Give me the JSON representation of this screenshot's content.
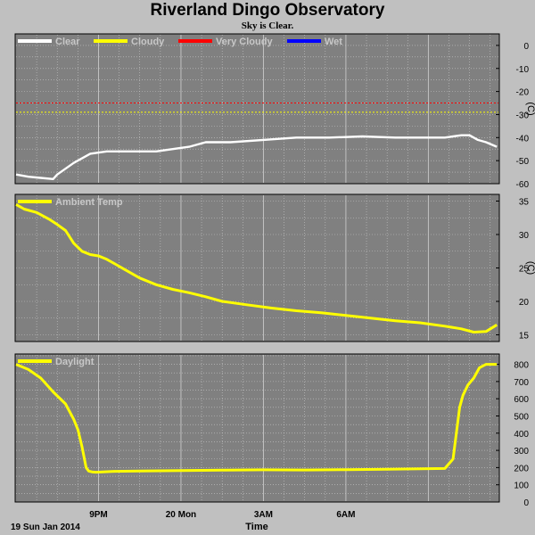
{
  "header": {
    "title": "Riverland Dingo Observatory",
    "subtitle": "Sky is Clear."
  },
  "footer": {
    "date_label": "19 Sun Jan 2014",
    "time_label": "Time"
  },
  "colors": {
    "plot_bg": "#808080",
    "frame_bg": "#c0c0c0",
    "grid": "#c8c8c8",
    "clear": "#ffffff",
    "cloudy": "#ffff00",
    "very_cloudy": "#ff0000",
    "wet": "#0000ff",
    "legend_text": "#c8c8c8"
  },
  "chart_data": [
    {
      "type": "line",
      "legend": [
        "Clear",
        "Cloudy",
        "Very Cloudy",
        "Wet"
      ],
      "ylabel": "(C)",
      "ylim": [
        -60,
        5
      ],
      "yticks": [
        0,
        -10,
        -20,
        -30,
        -40,
        -50,
        -60
      ],
      "xlim": [
        0,
        5.85
      ],
      "threshold_lines": [
        {
          "name": "Very Cloudy",
          "y": -25,
          "color": "#ff0000"
        },
        {
          "name": "Cloudy",
          "y": -29,
          "color": "#ffff00"
        }
      ],
      "series": [
        {
          "name": "Clear",
          "color": "#ffffff",
          "x": [
            0,
            0.15,
            0.3,
            0.45,
            0.5,
            0.7,
            0.9,
            1.1,
            1.3,
            1.5,
            1.7,
            1.9,
            2.1,
            2.3,
            2.6,
            3.0,
            3.4,
            3.8,
            4.2,
            4.6,
            5.0,
            5.2,
            5.4,
            5.5,
            5.6,
            5.7,
            5.83
          ],
          "values": [
            -56,
            -57,
            -57.5,
            -58,
            -56,
            -51,
            -47,
            -46,
            -46,
            -46,
            -46,
            -45,
            -44,
            -42,
            -42,
            -41,
            -40,
            -40,
            -39.5,
            -40,
            -40,
            -40,
            -39,
            -39,
            -41,
            -42,
            -44
          ]
        }
      ]
    },
    {
      "type": "line",
      "legend": [
        "Ambient Temp"
      ],
      "ylabel": "(C)",
      "ylim": [
        14,
        36
      ],
      "yticks": [
        15,
        20,
        25,
        30,
        35
      ],
      "xlim": [
        0,
        5.85
      ],
      "series": [
        {
          "name": "Ambient Temp",
          "color": "#ffff00",
          "x": [
            0,
            0.1,
            0.25,
            0.4,
            0.5,
            0.6,
            0.7,
            0.8,
            0.9,
            1.0,
            1.1,
            1.2,
            1.3,
            1.5,
            1.7,
            1.9,
            2.1,
            2.3,
            2.5,
            2.8,
            3.1,
            3.4,
            3.7,
            4.0,
            4.3,
            4.6,
            4.9,
            5.2,
            5.4,
            5.55,
            5.7,
            5.83
          ],
          "values": [
            34.5,
            33.8,
            33.3,
            32.3,
            31.5,
            30.6,
            28.7,
            27.5,
            27.0,
            26.8,
            26.3,
            25.6,
            24.9,
            23.5,
            22.5,
            21.8,
            21.3,
            20.7,
            20.0,
            19.5,
            19.0,
            18.6,
            18.3,
            17.9,
            17.5,
            17.1,
            16.8,
            16.3,
            15.9,
            15.4,
            15.5,
            16.5
          ]
        }
      ]
    },
    {
      "type": "line",
      "legend": [
        "Daylight"
      ],
      "ylabel": "",
      "ylim": [
        0,
        860
      ],
      "yticks": [
        0,
        100,
        200,
        300,
        400,
        500,
        600,
        700,
        800
      ],
      "xlim": [
        0,
        5.85
      ],
      "series": [
        {
          "name": "Daylight",
          "color": "#ffff00",
          "x": [
            0,
            0.15,
            0.3,
            0.45,
            0.6,
            0.7,
            0.75,
            0.8,
            0.85,
            0.88,
            0.92,
            0.97,
            1.05,
            1.2,
            1.5,
            2.0,
            2.5,
            3.0,
            3.5,
            4.0,
            4.5,
            5.2,
            5.3,
            5.34,
            5.38,
            5.42,
            5.48,
            5.55,
            5.62,
            5.7,
            5.76,
            5.83
          ],
          "values": [
            800,
            770,
            720,
            640,
            570,
            480,
            420,
            320,
            200,
            180,
            175,
            173,
            175,
            178,
            180,
            183,
            185,
            187,
            186,
            188,
            190,
            195,
            250,
            400,
            550,
            620,
            680,
            720,
            780,
            800,
            800,
            800
          ]
        }
      ]
    }
  ],
  "x_axis": {
    "ticks": [
      {
        "x": 1,
        "label": "9PM"
      },
      {
        "x": 2,
        "label": "20 Mon"
      },
      {
        "x": 3,
        "label": "3AM"
      },
      {
        "x": 4,
        "label": "6AM"
      }
    ]
  }
}
